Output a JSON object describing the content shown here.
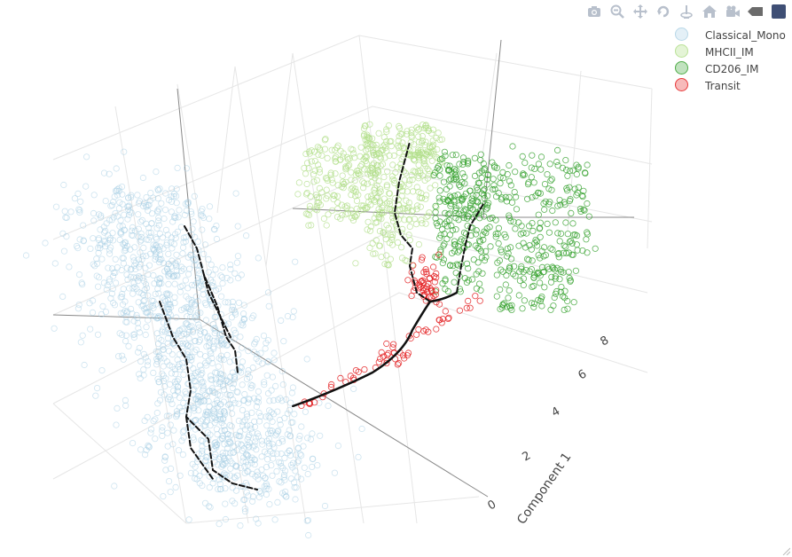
{
  "chart_data": {
    "type": "scatter3d",
    "title": "",
    "axes": {
      "x": {
        "label": "Component 1",
        "ticks": [
          "0",
          "2",
          "4",
          "6",
          "8"
        ],
        "range": [
          0,
          9
        ]
      },
      "grid": true
    },
    "legend_position": "top-right",
    "series": [
      {
        "name": "Classical_Mono",
        "color": "#a6cee3",
        "marker": "circle-open",
        "cluster": "large elongated cloud lower-left"
      },
      {
        "name": "MHCII_IM",
        "color": "#b2df8a",
        "marker": "circle-open",
        "cluster": "upper-left of upper group"
      },
      {
        "name": "CD206_IM",
        "color": "#33a02c",
        "marker": "circle-open",
        "cluster": "upper-right of upper group"
      },
      {
        "name": "Transit",
        "color": "#e31a1c",
        "marker": "circle-open",
        "cluster": "along trajectory between groups"
      }
    ],
    "trajectory": {
      "color": "#111111",
      "type": "principal graph lines"
    }
  },
  "modebar": {
    "buttons": [
      "camera-icon",
      "zoom-icon",
      "pan-icon",
      "orbit-rotation-icon",
      "turntable-rotation-icon",
      "reset-camera-icon",
      "reset-last-view-icon",
      "hover-toggle-icon",
      "plotly-logo-icon"
    ]
  }
}
